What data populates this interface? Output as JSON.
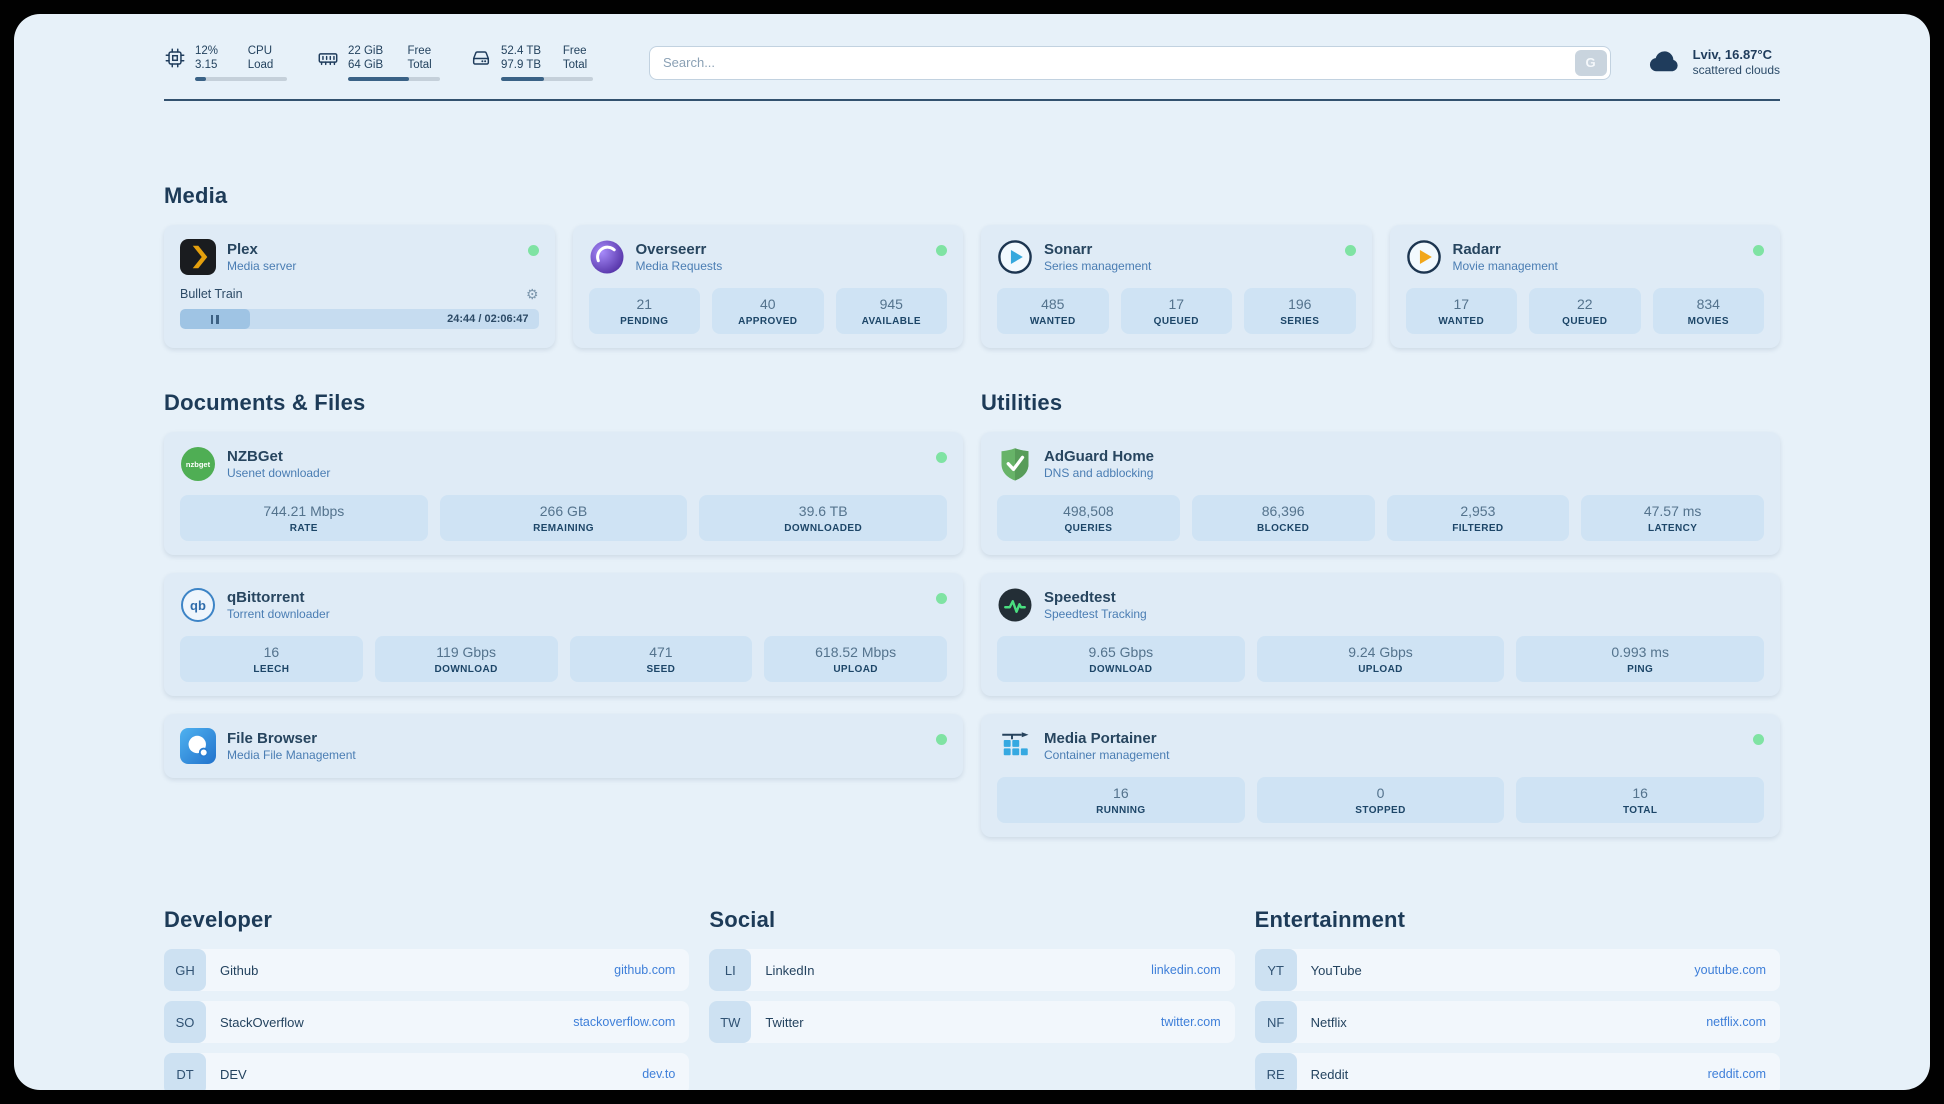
{
  "colors": {
    "panel_background": "#e7f1f9",
    "status_online": "#7fe3a3",
    "link": "#3e7fd9",
    "progress_fill": "#3a6286"
  },
  "topbar": {
    "cpu": {
      "value1": "12%",
      "label1": "CPU",
      "value2": "3.15",
      "label2": "Load",
      "percent": 12
    },
    "ram": {
      "value1": "22 GiB",
      "label1": "Free",
      "value2": "64 GiB",
      "label2": "Total",
      "percent": 66
    },
    "disk": {
      "value1": "52.4 TB",
      "label1": "Free",
      "value2": "97.9 TB",
      "label2": "Total",
      "percent": 47
    },
    "search": {
      "placeholder": "Search...",
      "button_label": "G"
    },
    "weather": {
      "location": "Lviv, 16.87°C",
      "condition": "scattered clouds"
    }
  },
  "groups": {
    "media": {
      "title": "Media",
      "plex": {
        "name": "Plex",
        "subtitle": "Media server",
        "online": true,
        "player": {
          "title": "Bullet Train",
          "time": "24:44 / 02:06:47",
          "progress_percent": 19.5
        }
      },
      "overseerr": {
        "name": "Overseerr",
        "subtitle": "Media Requests",
        "online": true,
        "stats": [
          {
            "value": "21",
            "label": "PENDING"
          },
          {
            "value": "40",
            "label": "APPROVED"
          },
          {
            "value": "945",
            "label": "AVAILABLE"
          }
        ]
      },
      "sonarr": {
        "name": "Sonarr",
        "subtitle": "Series management",
        "online": true,
        "stats": [
          {
            "value": "485",
            "label": "WANTED"
          },
          {
            "value": "17",
            "label": "QUEUED"
          },
          {
            "value": "196",
            "label": "SERIES"
          }
        ]
      },
      "radarr": {
        "name": "Radarr",
        "subtitle": "Movie management",
        "online": true,
        "stats": [
          {
            "value": "17",
            "label": "WANTED"
          },
          {
            "value": "22",
            "label": "QUEUED"
          },
          {
            "value": "834",
            "label": "MOVIES"
          }
        ]
      }
    },
    "documents": {
      "title": "Documents & Files",
      "nzbget": {
        "name": "NZBGet",
        "subtitle": "Usenet downloader",
        "online": true,
        "stats": [
          {
            "value": "744.21 Mbps",
            "label": "RATE"
          },
          {
            "value": "266 GB",
            "label": "REMAINING"
          },
          {
            "value": "39.6 TB",
            "label": "DOWNLOADED"
          }
        ]
      },
      "qbittorrent": {
        "name": "qBittorrent",
        "subtitle": "Torrent downloader",
        "online": true,
        "stats": [
          {
            "value": "16",
            "label": "LEECH"
          },
          {
            "value": "119 Gbps",
            "label": "DOWNLOAD"
          },
          {
            "value": "471",
            "label": "SEED"
          },
          {
            "value": "618.52 Mbps",
            "label": "UPLOAD"
          }
        ]
      },
      "filebrowser": {
        "name": "File Browser",
        "subtitle": "Media File Management",
        "online": true
      }
    },
    "utilities": {
      "title": "Utilities",
      "adguard": {
        "name": "AdGuard Home",
        "subtitle": "DNS and adblocking",
        "online": false,
        "stats": [
          {
            "value": "498,508",
            "label": "QUERIES"
          },
          {
            "value": "86,396",
            "label": "BLOCKED"
          },
          {
            "value": "2,953",
            "label": "FILTERED"
          },
          {
            "value": "47.57 ms",
            "label": "LATENCY"
          }
        ]
      },
      "speedtest": {
        "name": "Speedtest",
        "subtitle": "Speedtest Tracking",
        "online": false,
        "stats": [
          {
            "value": "9.65 Gbps",
            "label": "DOWNLOAD"
          },
          {
            "value": "9.24 Gbps",
            "label": "UPLOAD"
          },
          {
            "value": "0.993 ms",
            "label": "PING"
          }
        ]
      },
      "portainer": {
        "name": "Media Portainer",
        "subtitle": "Container management",
        "online": true,
        "stats": [
          {
            "value": "16",
            "label": "RUNNING"
          },
          {
            "value": "0",
            "label": "STOPPED"
          },
          {
            "value": "16",
            "label": "TOTAL"
          }
        ]
      }
    }
  },
  "bookmarks": {
    "developer": {
      "title": "Developer",
      "items": [
        {
          "abbr": "GH",
          "name": "Github",
          "href": "github.com"
        },
        {
          "abbr": "SO",
          "name": "StackOverflow",
          "href": "stackoverflow.com"
        },
        {
          "abbr": "DT",
          "name": "DEV",
          "href": "dev.to"
        }
      ]
    },
    "social": {
      "title": "Social",
      "items": [
        {
          "abbr": "LI",
          "name": "LinkedIn",
          "href": "linkedin.com"
        },
        {
          "abbr": "TW",
          "name": "Twitter",
          "href": "twitter.com"
        }
      ]
    },
    "entertainment": {
      "title": "Entertainment",
      "items": [
        {
          "abbr": "YT",
          "name": "YouTube",
          "href": "youtube.com"
        },
        {
          "abbr": "NF",
          "name": "Netflix",
          "href": "netflix.com"
        },
        {
          "abbr": "RE",
          "name": "Reddit",
          "href": "reddit.com"
        }
      ]
    }
  }
}
